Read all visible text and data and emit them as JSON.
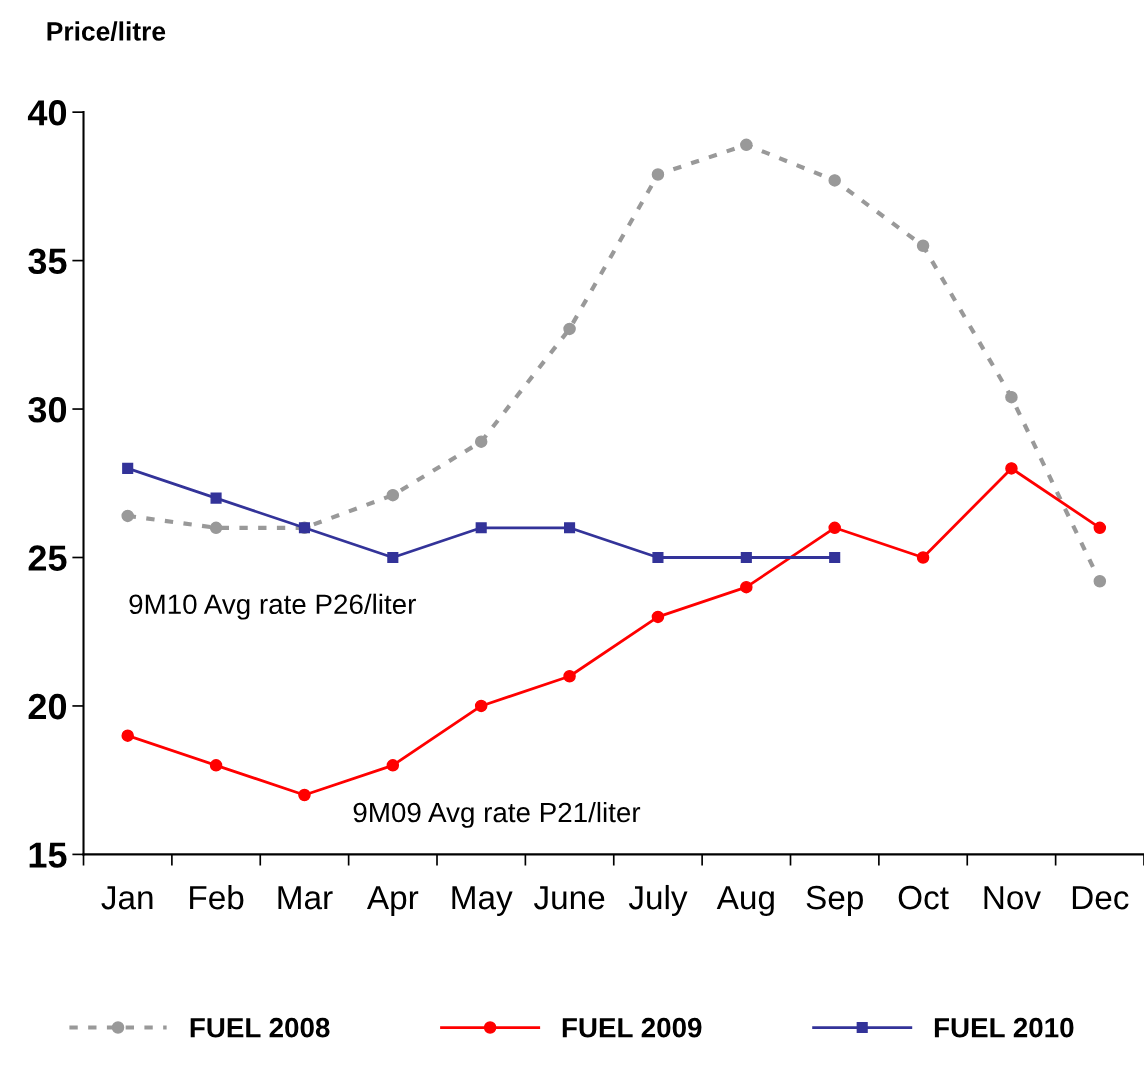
{
  "chart_data": {
    "type": "line",
    "ylabel": "Price/litre",
    "categories": [
      "Jan",
      "Feb",
      "Mar",
      "Apr",
      "May",
      "June",
      "July",
      "Aug",
      "Sep",
      "Oct",
      "Nov",
      "Dec"
    ],
    "series": [
      {
        "name": "FUEL 2008",
        "color": "#999999",
        "line_style": "dotted",
        "marker": "circle",
        "values": [
          26.4,
          26.0,
          26.0,
          27.1,
          28.9,
          32.7,
          37.9,
          38.9,
          37.7,
          35.5,
          30.4,
          24.2
        ]
      },
      {
        "name": "FUEL 2009",
        "color": "#ff0000",
        "line_style": "solid",
        "marker": "circle",
        "values": [
          19,
          18,
          17,
          18,
          20,
          21,
          23,
          24,
          26,
          25,
          28,
          26
        ]
      },
      {
        "name": "FUEL 2010",
        "color": "#333399",
        "line_style": "solid",
        "marker": "square",
        "values": [
          28,
          27,
          26,
          25,
          26,
          26,
          25,
          25,
          25,
          null,
          null,
          null
        ]
      }
    ],
    "ylim": [
      15,
      40
    ],
    "yticks": [
      15,
      20,
      25,
      30,
      35,
      40
    ],
    "grid": false,
    "legend": "bottom",
    "annotations": [
      "9M10 Avg rate P26/liter",
      "9M09 Avg rate P21/liter"
    ]
  }
}
